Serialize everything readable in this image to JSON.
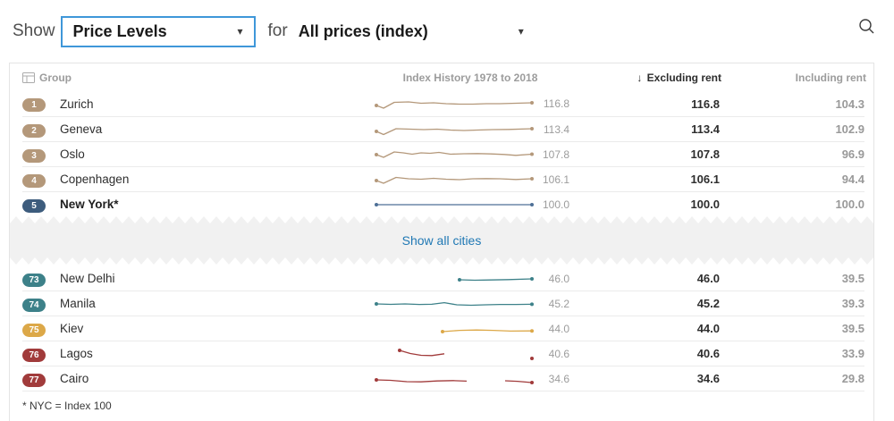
{
  "toolbar": {
    "show_label": "Show",
    "metric_dropdown": {
      "value": "Price Levels",
      "caret": "▾"
    },
    "for_label": "for",
    "scope_dropdown": {
      "value": "All prices (index)",
      "caret": "▾"
    }
  },
  "table": {
    "headers": {
      "group": "Group",
      "history": "Index History 1978 to 2018",
      "sort_arrow": "↓",
      "excluding": "Excluding rent",
      "including": "Including rent"
    },
    "top_rows": [
      {
        "rank": "1",
        "city": "Zurich",
        "spark_value": "116.8",
        "excluding": "116.8",
        "including": "104.3",
        "badge": "tan",
        "spark": {
          "color": "tan",
          "segments": [
            [
              [
                2,
                12
              ],
              [
                10,
                15
              ],
              [
                22,
                8.5
              ],
              [
                38,
                8
              ],
              [
                52,
                9.5
              ],
              [
                66,
                9
              ],
              [
                80,
                10
              ],
              [
                95,
                10.5
              ],
              [
                110,
                10.5
              ],
              [
                125,
                10
              ],
              [
                140,
                10
              ],
              [
                158,
                9.5
              ],
              [
                176,
                9
              ]
            ]
          ],
          "dots": [
            [
              2,
              12
            ],
            [
              176,
              9
            ]
          ]
        }
      },
      {
        "rank": "2",
        "city": "Geneva",
        "spark_value": "113.4",
        "excluding": "113.4",
        "including": "102.9",
        "badge": "tan",
        "spark": {
          "color": "tan",
          "segments": [
            [
              [
                2,
                12
              ],
              [
                10,
                15.5
              ],
              [
                24,
                9
              ],
              [
                40,
                9.5
              ],
              [
                55,
                10
              ],
              [
                70,
                9.5
              ],
              [
                85,
                10.5
              ],
              [
                100,
                11
              ],
              [
                115,
                10.5
              ],
              [
                132,
                10
              ],
              [
                150,
                9.8
              ],
              [
                176,
                9
              ]
            ]
          ],
          "dots": [
            [
              2,
              12
            ],
            [
              176,
              9
            ]
          ]
        }
      },
      {
        "rank": "3",
        "city": "Oslo",
        "spark_value": "107.8",
        "excluding": "107.8",
        "including": "96.9",
        "badge": "tan",
        "spark": {
          "color": "tan",
          "segments": [
            [
              [
                2,
                10
              ],
              [
                10,
                13
              ],
              [
                22,
                7
              ],
              [
                32,
                8
              ],
              [
                42,
                9.5
              ],
              [
                52,
                8
              ],
              [
                62,
                8.5
              ],
              [
                72,
                7.5
              ],
              [
                85,
                9.5
              ],
              [
                100,
                9
              ],
              [
                115,
                8.8
              ],
              [
                130,
                9.2
              ],
              [
                145,
                9.8
              ],
              [
                158,
                10.8
              ],
              [
                176,
                9.5
              ]
            ]
          ],
          "dots": [
            [
              2,
              10
            ],
            [
              176,
              9.5
            ]
          ]
        }
      },
      {
        "rank": "4",
        "city": "Copenhagen",
        "spark_value": "106.1",
        "excluding": "106.1",
        "including": "94.4",
        "badge": "tan",
        "spark": {
          "color": "tan",
          "segments": [
            [
              [
                2,
                11
              ],
              [
                10,
                14
              ],
              [
                24,
                7.5
              ],
              [
                38,
                9
              ],
              [
                52,
                9.5
              ],
              [
                66,
                8.5
              ],
              [
                80,
                9.5
              ],
              [
                95,
                10
              ],
              [
                110,
                9
              ],
              [
                125,
                8.8
              ],
              [
                140,
                9
              ],
              [
                158,
                9.8
              ],
              [
                176,
                9
              ]
            ]
          ],
          "dots": [
            [
              2,
              11
            ],
            [
              176,
              9
            ]
          ]
        }
      },
      {
        "rank": "5",
        "city": "New York*",
        "spark_value": "100.0",
        "excluding": "100.0",
        "including": "100.0",
        "badge": "navy",
        "spark": {
          "color": "navyline",
          "segments": [
            [
              [
                2,
                10
              ],
              [
                176,
                10
              ]
            ]
          ],
          "dots": [
            [
              2,
              10
            ],
            [
              176,
              10
            ]
          ]
        }
      }
    ],
    "show_all_label": "Show all cities",
    "bottom_rows": [
      {
        "rank": "73",
        "city": "New Delhi",
        "spark_value": "46.0",
        "excluding": "46.0",
        "including": "39.5",
        "badge": "teal",
        "spark": {
          "color": "teal",
          "segments": [
            [
              [
                95,
                11
              ],
              [
                112,
                11.5
              ],
              [
                130,
                11.2
              ],
              [
                150,
                10.8
              ],
              [
                176,
                10
              ]
            ]
          ],
          "dots": [
            [
              95,
              11
            ],
            [
              176,
              10
            ]
          ]
        }
      },
      {
        "rank": "74",
        "city": "Manila",
        "spark_value": "45.2",
        "excluding": "45.2",
        "including": "39.3",
        "badge": "teal",
        "spark": {
          "color": "teal",
          "segments": [
            [
              [
                2,
                10
              ],
              [
                18,
                10.5
              ],
              [
                34,
                10
              ],
              [
                50,
                10.6
              ],
              [
                64,
                10.4
              ],
              [
                78,
                8.6
              ],
              [
                92,
                11
              ],
              [
                108,
                11.5
              ],
              [
                124,
                11
              ],
              [
                140,
                10.6
              ],
              [
                158,
                10.6
              ],
              [
                176,
                10.4
              ]
            ]
          ],
          "dots": [
            [
              2,
              10
            ],
            [
              176,
              10.4
            ]
          ]
        }
      },
      {
        "rank": "75",
        "city": "Kiev",
        "spark_value": "44.0",
        "excluding": "44.0",
        "including": "39.5",
        "badge": "gold",
        "spark": {
          "color": "gold",
          "segments": [
            [
              [
                76,
                13
              ],
              [
                95,
                11.6
              ],
              [
                114,
                11.2
              ],
              [
                133,
                11.6
              ],
              [
                152,
                12.4
              ],
              [
                176,
                12.2
              ]
            ]
          ],
          "dots": [
            [
              76,
              13
            ],
            [
              176,
              12.2
            ]
          ]
        }
      },
      {
        "rank": "76",
        "city": "Lagos",
        "spark_value": "40.6",
        "excluding": "40.6",
        "including": "33.9",
        "badge": "red",
        "spark": {
          "color": "red",
          "segments": [
            [
              [
                28,
                6
              ],
              [
                40,
                9.5
              ],
              [
                52,
                11.5
              ],
              [
                64,
                11.8
              ],
              [
                78,
                9.8
              ]
            ]
          ],
          "dots": [
            [
              28,
              6
            ],
            [
              176,
              15
            ]
          ]
        }
      },
      {
        "rank": "77",
        "city": "Cairo",
        "spark_value": "34.6",
        "excluding": "34.6",
        "including": "29.8",
        "badge": "red",
        "spark": {
          "color": "red",
          "segments": [
            [
              [
                2,
                11
              ],
              [
                18,
                11.5
              ],
              [
                36,
                13
              ],
              [
                52,
                13.2
              ],
              [
                70,
                12.2
              ],
              [
                88,
                11.8
              ],
              [
                103,
                12.4
              ]
            ],
            [
              [
                146,
                12
              ],
              [
                160,
                12.6
              ],
              [
                176,
                14
              ]
            ]
          ],
          "dots": [
            [
              2,
              11
            ],
            [
              176,
              14
            ]
          ]
        }
      }
    ],
    "footnote": "* NYC = Index 100"
  },
  "colors": {
    "tan": "#b4987a",
    "navy": "#3d5c7d",
    "navyline": "#4d6f96",
    "teal": "#3d8189",
    "gold": "#dca848",
    "red": "#a13b3b",
    "accent_blue": "#3f97d9",
    "link_blue": "#1f78b4"
  }
}
